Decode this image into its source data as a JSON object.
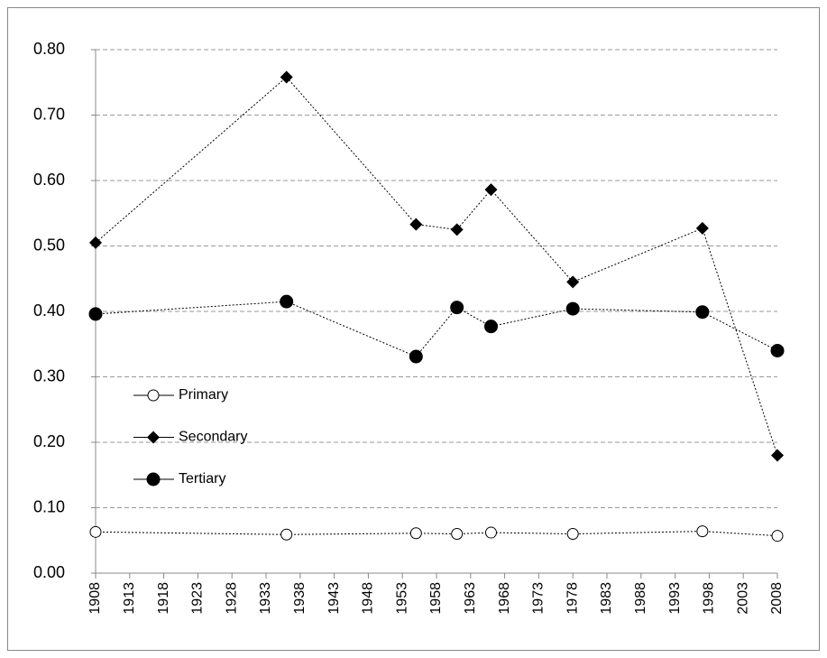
{
  "chart_data": {
    "type": "line",
    "x": [
      1908,
      1936,
      1955,
      1961,
      1966,
      1978,
      1997,
      2008
    ],
    "series": [
      {
        "name": "Primary",
        "color": "#000000",
        "marker": "circle-open",
        "values": [
          0.063,
          0.059,
          0.061,
          0.06,
          0.062,
          0.06,
          0.064,
          0.057
        ]
      },
      {
        "name": "Secondary",
        "color": "#000000",
        "marker": "diamond",
        "values": [
          0.505,
          0.758,
          0.533,
          0.525,
          0.586,
          0.445,
          0.527,
          0.18
        ]
      },
      {
        "name": "Tertiary",
        "color": "#000000",
        "marker": "circle",
        "values": [
          0.396,
          0.415,
          0.331,
          0.406,
          0.377,
          0.404,
          0.399,
          0.34
        ]
      }
    ],
    "xlim": [
      1908,
      2008
    ],
    "xticks": [
      1908,
      1913,
      1918,
      1923,
      1928,
      1933,
      1938,
      1943,
      1948,
      1953,
      1958,
      1963,
      1968,
      1973,
      1978,
      1983,
      1988,
      1993,
      1998,
      2003,
      2008
    ],
    "ylim": [
      0,
      0.8
    ],
    "yticks": [
      {
        "value": 0,
        "label": "0.00"
      },
      {
        "value": 0.1,
        "label": "0.10"
      },
      {
        "value": 0.2,
        "label": "0.20"
      },
      {
        "value": 0.3,
        "label": "0.30"
      },
      {
        "value": 0.4,
        "label": "0.40"
      },
      {
        "value": 0.5,
        "label": "0.50"
      },
      {
        "value": 0.6,
        "label": "0.60"
      },
      {
        "value": 0.7,
        "label": "0.70"
      },
      {
        "value": 0.8,
        "label": "0.80"
      }
    ],
    "grid": true,
    "legend": "left"
  }
}
